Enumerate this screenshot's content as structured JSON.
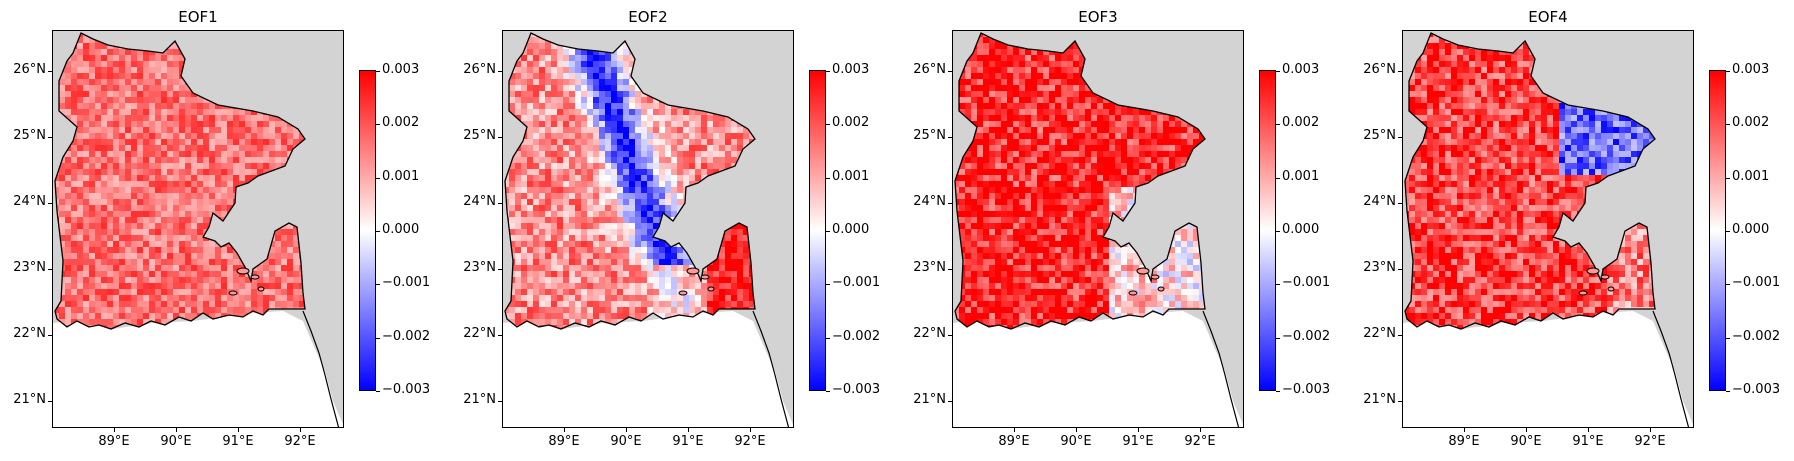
{
  "colors": {
    "ocean": "#ffffff",
    "land_outside": "#d3d3d3",
    "coastline": "#000000",
    "colormap": [
      "#0000ff",
      "#ffffff",
      "#ff0000"
    ]
  },
  "colorbar": {
    "min": -0.003,
    "max": 0.003,
    "ticks": [
      "0.003",
      "0.002",
      "0.001",
      "0.000",
      "−0.001",
      "−0.002",
      "−0.003"
    ]
  },
  "axes": {
    "lat_ticks": [
      "26°N",
      "25°N",
      "24°N",
      "23°N",
      "22°N",
      "21°N"
    ],
    "lon_ticks": [
      "89°E",
      "90°E",
      "91°E",
      "92°E"
    ]
  },
  "panels": [
    {
      "title": "EOF1",
      "pattern": "uniform positive, mostly 0.001–0.002"
    },
    {
      "title": "EOF2",
      "pattern": "negative (blue) along central north-south band, positive in south and south-east"
    },
    {
      "title": "EOF3",
      "pattern": "strongly positive west and north, mixed slightly negative in south-east"
    },
    {
      "title": "EOF4",
      "pattern": "strongly positive west and south-west, negative in north-east"
    }
  ]
}
